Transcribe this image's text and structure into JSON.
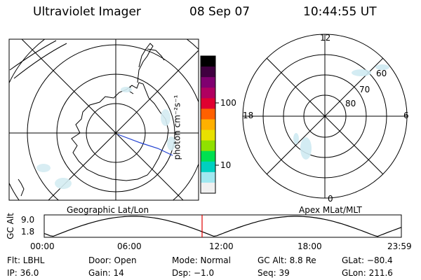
{
  "header": {
    "title": "Ultraviolet Imager",
    "date": "08 Sep 07",
    "time": "10:44:55 UT"
  },
  "left_map": {
    "caption": "Geographic Lat/Lon"
  },
  "right_map": {
    "caption": "Apex MLat/MLT",
    "mlt_labels": {
      "top": "12",
      "left": "18",
      "right": "6",
      "bottom": "0"
    },
    "lat_labels": [
      "60",
      "70",
      "80"
    ]
  },
  "colorbar": {
    "label": "photon cm⁻²s⁻¹",
    "ticks": [
      "100",
      "10"
    ],
    "colors": [
      "#000000",
      "#400040",
      "#800070",
      "#b00060",
      "#e00030",
      "#ff6000",
      "#ffb000",
      "#e8e000",
      "#90e000",
      "#00e050",
      "#00d0c0",
      "#a0e8f0",
      "#f0f0f0"
    ]
  },
  "altitude_plot": {
    "ylabel": "GC Alt",
    "yticks": [
      "9.0",
      "1.8"
    ],
    "xticks": [
      "00:00",
      "06:00",
      "12:00",
      "18:00",
      "23:59"
    ],
    "current_time_marker": "10:44:55",
    "marker_color": "#e00000"
  },
  "info": {
    "row1": [
      "Flt: LBHL",
      "Door: Open",
      "Mode: Normal",
      "GC Alt: 8.8 Re",
      "GLat: −80.4"
    ],
    "row2": [
      "IP: 36.0",
      "Gain: 14",
      "Dsp:   −1.0",
      "Seq: 39",
      "GLon: 211.6"
    ]
  }
}
